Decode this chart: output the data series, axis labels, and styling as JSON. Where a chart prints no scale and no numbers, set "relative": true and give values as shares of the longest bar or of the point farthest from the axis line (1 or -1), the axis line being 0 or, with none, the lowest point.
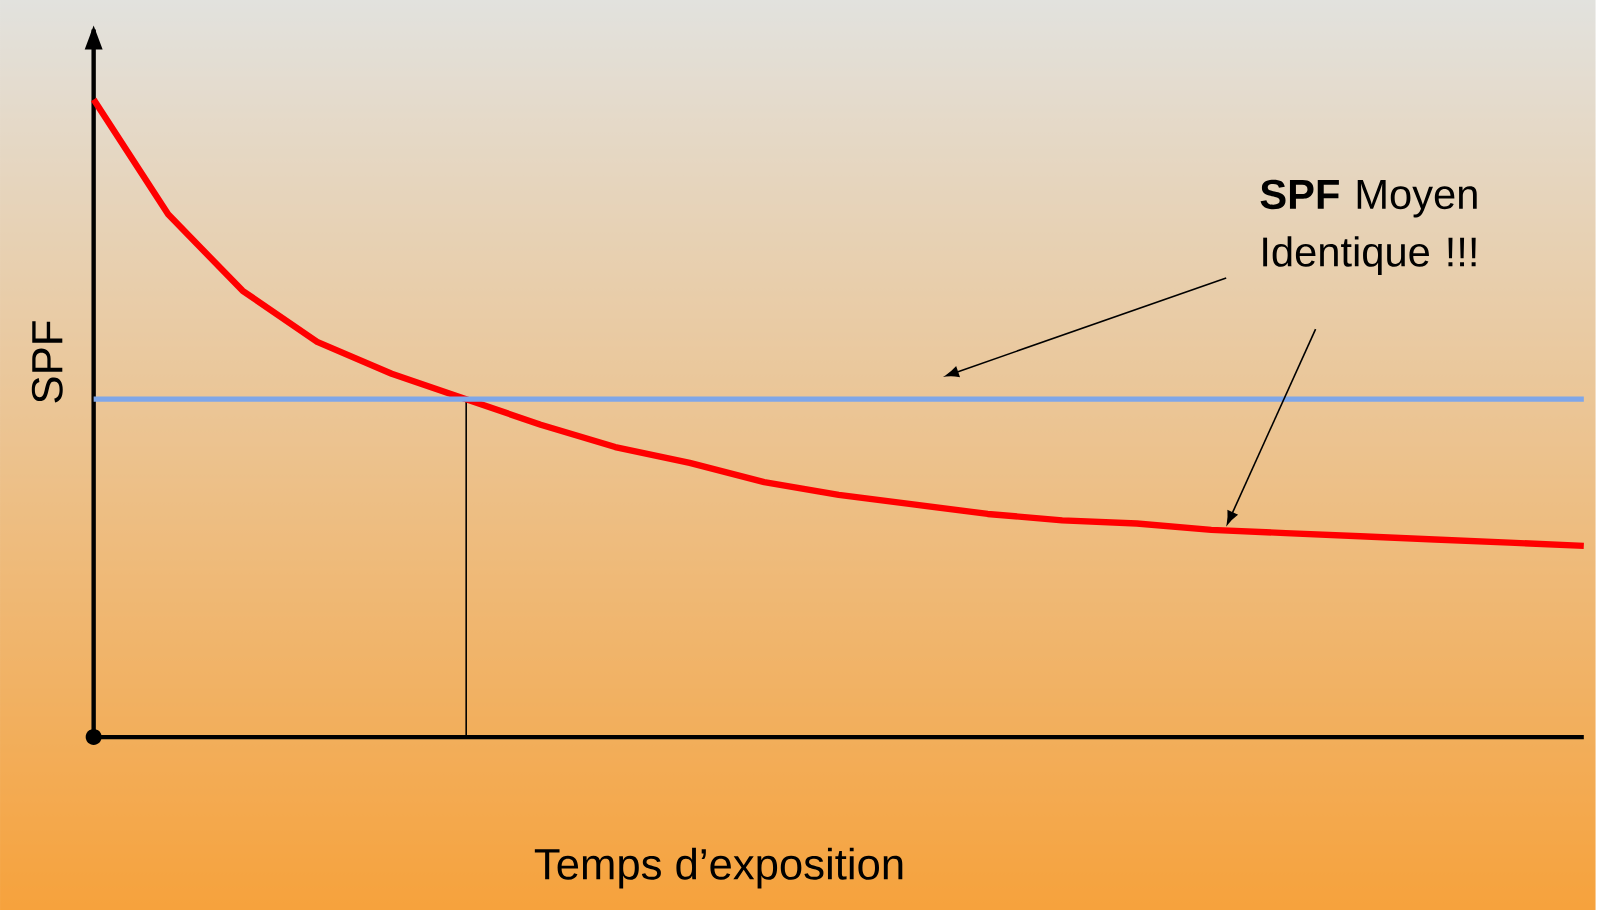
{
  "chart_data": {
    "type": "line",
    "relative": true,
    "xlabel": "Temps d’exposition",
    "ylabel": "SPF",
    "categories": [
      null,
      null,
      null,
      null,
      null,
      null,
      null,
      null,
      null,
      null,
      null,
      null,
      null,
      null,
      null,
      null,
      null,
      null,
      null,
      null,
      null
    ],
    "series": [
      {
        "color": "#ff0000",
        "values": [
          1.0,
          0.82,
          0.7,
          0.62,
          0.57,
          0.53,
          0.49,
          0.455,
          0.43,
          0.4,
          0.38,
          0.365,
          0.35,
          0.34,
          0.335,
          0.325,
          0.32,
          0.315,
          0.31,
          0.305,
          0.3
        ]
      },
      {
        "color": "#7fa6e8",
        "values": [
          0.53,
          0.53,
          0.53,
          0.53,
          0.53,
          0.53,
          0.53,
          0.53,
          0.53,
          0.53,
          0.53,
          0.53,
          0.53,
          0.53,
          0.53,
          0.53,
          0.53,
          0.53,
          0.53,
          0.53,
          0.53
        ]
      }
    ],
    "annotations": [
      "**SPF** Moyen Identique !!!"
    ]
  }
}
